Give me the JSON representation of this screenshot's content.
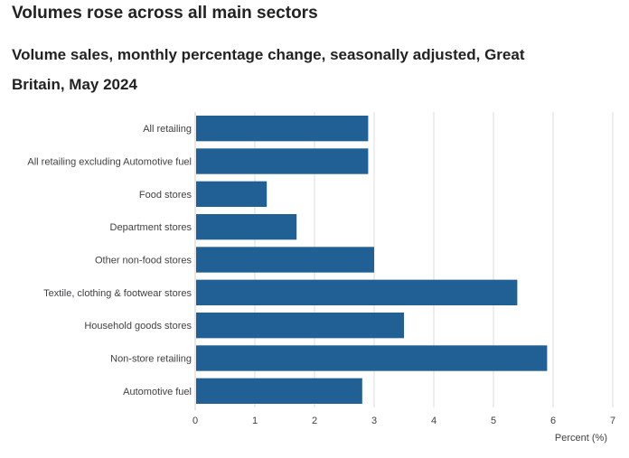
{
  "headline": "Volumes rose across all main sectors",
  "chart_data": {
    "type": "bar",
    "orientation": "horizontal",
    "title": "Volume sales, monthly percentage change, seasonally adjusted, Great Britain, May 2024",
    "categories": [
      "All retailing",
      "All retailing excluding Automotive fuel",
      "Food stores",
      "Department stores",
      "Other non-food stores",
      "Textile, clothing & footwear stores",
      "Household goods stores",
      "Non-store retailing",
      "Automotive fuel"
    ],
    "values": [
      2.9,
      2.9,
      1.2,
      1.7,
      3.0,
      5.4,
      3.5,
      5.9,
      2.8
    ],
    "xlabel": "Percent (%)",
    "ylabel": "",
    "xlim": [
      0,
      7
    ],
    "xticks": [
      "0",
      "1",
      "2",
      "3",
      "4",
      "5",
      "6",
      "7"
    ],
    "grid": true,
    "legend": "none",
    "bar_color": "#206095"
  }
}
